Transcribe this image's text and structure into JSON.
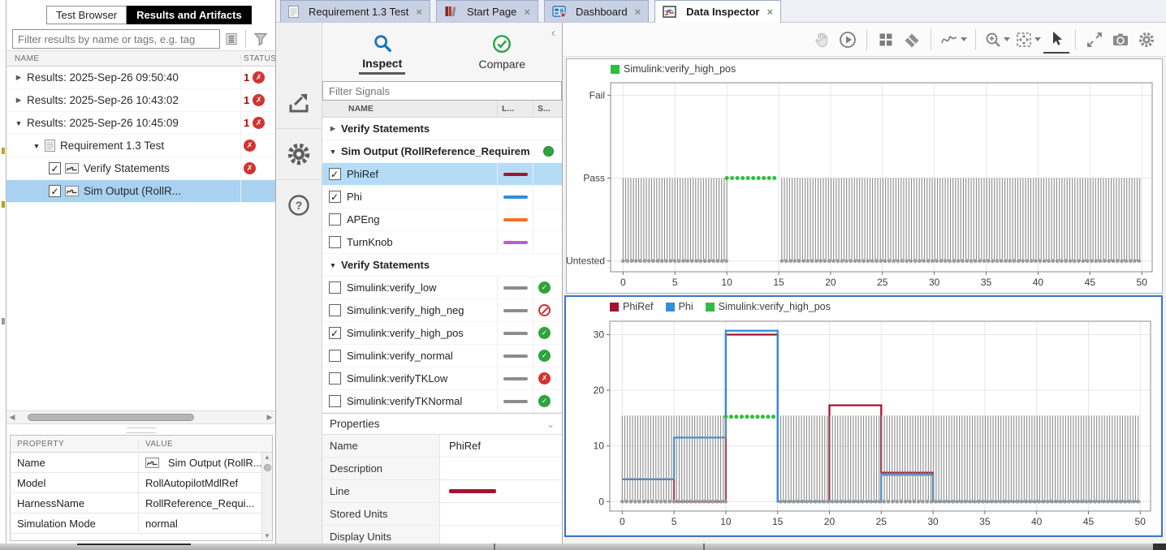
{
  "colors": {
    "selection_blue": "#A8D2F0",
    "subplot_selected_border": "#3D72CC",
    "status_pass": "#2EA33C",
    "status_fail": "#D23430",
    "status_excluded": "#C9302C",
    "untested_gray": "#8C8C8C"
  },
  "left_panel": {
    "tabs": [
      "Test Browser",
      "Results and Artifacts"
    ],
    "active_tab": "Results and Artifacts",
    "filter_placeholder": "Filter results by name or tags, e.g. tag",
    "filter_icons": [
      "list-view-icon",
      "filter-funnel-icon"
    ],
    "columns": [
      "NAME",
      "STATUS"
    ],
    "rows": [
      {
        "indent": 0,
        "arrow": "collapsed",
        "label": "Results: 2025-Sep-26 09:50:40",
        "status_count": "1",
        "status": "fail"
      },
      {
        "indent": 0,
        "arrow": "collapsed",
        "label": "Results: 2025-Sep-26 10:43:02",
        "status_count": "1",
        "status": "fail"
      },
      {
        "indent": 0,
        "arrow": "expanded",
        "label": "Results: 2025-Sep-26 10:45:09",
        "status_count": "1",
        "status": "fail"
      },
      {
        "indent": 1,
        "arrow": "expanded",
        "icon": "document",
        "label": "Requirement 1.3 Test",
        "status": "fail"
      },
      {
        "indent": 2,
        "checkbox": true,
        "icon": "signal",
        "label": "Verify Statements",
        "status": "fail"
      },
      {
        "indent": 2,
        "checkbox": true,
        "icon": "signal",
        "label": "Sim Output (RollR...",
        "selected": true
      }
    ],
    "properties": {
      "columns": [
        "PROPERTY",
        "VALUE"
      ],
      "rows": [
        {
          "label": "Name",
          "value": "Sim Output (RollR...",
          "icon": "signal"
        },
        {
          "label": "Model",
          "value": "RollAutopilotMdlRef"
        },
        {
          "label": "HarnessName",
          "value": "RollReference_Requi..."
        },
        {
          "label": "Simulation Mode",
          "value": "normal"
        }
      ]
    }
  },
  "document_tabs": [
    {
      "label": "Requirement 1.3 Test",
      "icon": "doc",
      "active": false
    },
    {
      "label": "Start Page",
      "icon": "start",
      "active": false
    },
    {
      "label": "Dashboard",
      "icon": "dashboard",
      "active": false
    },
    {
      "label": "Data Inspector",
      "icon": "inspector",
      "active": true
    }
  ],
  "sidebar_icons": [
    "export-icon",
    "gear-icon",
    "help-icon"
  ],
  "inspector_panel": {
    "tabs": [
      {
        "label": "Inspect",
        "icon": "magnifier-icon",
        "active": true
      },
      {
        "label": "Compare",
        "icon": "check-circle-icon",
        "active": false
      }
    ],
    "filter_placeholder": "Filter Signals",
    "columns": [
      "NAME",
      "L...",
      "S..."
    ],
    "rows": [
      {
        "type": "group",
        "arrow": "collapsed",
        "label": "Verify Statements"
      },
      {
        "type": "group",
        "arrow": "expanded",
        "label": "Sim Output (RollReference_Requirem",
        "badge": "green-dot"
      },
      {
        "type": "signal",
        "checked": true,
        "selected": true,
        "label": "PhiRef",
        "color": "#A2142F"
      },
      {
        "type": "signal",
        "checked": true,
        "label": "Phi",
        "color": "#2E8FE0"
      },
      {
        "type": "signal",
        "checked": false,
        "label": "APEng",
        "color": "#F47023"
      },
      {
        "type": "signal",
        "checked": false,
        "label": "TurnKnob",
        "color": "#B85DD8"
      },
      {
        "type": "group",
        "arrow": "expanded",
        "label": "Verify Statements"
      },
      {
        "type": "verify",
        "checked": false,
        "label": "Simulink:verify_low",
        "color": "#8C8C8C",
        "status": "pass"
      },
      {
        "type": "verify",
        "checked": false,
        "label": "Simulink:verify_high_neg",
        "color": "#8C8C8C",
        "status": "excluded"
      },
      {
        "type": "verify",
        "checked": true,
        "label": "Simulink:verify_high_pos",
        "color": "#8C8C8C",
        "status": "pass"
      },
      {
        "type": "verify",
        "checked": false,
        "label": "Simulink:verify_normal",
        "color": "#8C8C8C",
        "status": "pass"
      },
      {
        "type": "verify",
        "checked": false,
        "label": "Simulink:verifyTKLow",
        "color": "#8C8C8C",
        "status": "fail"
      },
      {
        "type": "verify",
        "checked": false,
        "label": "Simulink:verifyTKNormal",
        "color": "#8C8C8C",
        "status": "pass"
      }
    ],
    "properties": {
      "title": "Properties",
      "rows": [
        {
          "label": "Name",
          "value": "PhiRef"
        },
        {
          "label": "Description",
          "value": ""
        },
        {
          "label": "Line",
          "value": "",
          "swatch": "#A2142F"
        },
        {
          "label": "Stored Units",
          "value": ""
        },
        {
          "label": "Display Units",
          "value": ""
        }
      ]
    }
  },
  "toolbar": {
    "items": [
      {
        "icon": "pan-hand",
        "name": "pan",
        "disabled": true
      },
      {
        "icon": "replay",
        "name": "replay"
      },
      {
        "sep": true
      },
      {
        "icon": "layout-grid",
        "name": "subplot-layout"
      },
      {
        "icon": "eraser",
        "name": "clear-plots"
      },
      {
        "sep": true
      },
      {
        "icon": "signal-style",
        "name": "signal-style",
        "dropdown": true
      },
      {
        "sep": true
      },
      {
        "icon": "zoom-in",
        "name": "zoom-in",
        "dropdown": true
      },
      {
        "icon": "fit-view",
        "name": "fit-to-view",
        "dropdown": true
      },
      {
        "icon": "cursor",
        "name": "data-cursor",
        "active": true
      },
      {
        "sep": true
      },
      {
        "icon": "expand",
        "name": "maximize"
      },
      {
        "icon": "camera",
        "name": "snapshot"
      },
      {
        "icon": "gear",
        "name": "settings"
      }
    ]
  },
  "chart_data": [
    {
      "type": "line",
      "name": "verify-result-timeline",
      "legend": [
        {
          "label": "Simulink:verify_high_pos",
          "color": "#2FBE41"
        }
      ],
      "xlim": [
        -1.2,
        51
      ],
      "ylim": [
        -0.13,
        2.15
      ],
      "xticks": [
        0,
        5,
        10,
        15,
        20,
        25,
        30,
        35,
        40,
        45,
        50
      ],
      "yticks": [
        {
          "value": 2,
          "label": "Fail"
        },
        {
          "value": 1,
          "label": "Pass"
        },
        {
          "value": 0,
          "label": "Untested"
        }
      ],
      "grid": true,
      "comb": {
        "ranges": [
          [
            0,
            10
          ],
          [
            15.3,
            50
          ]
        ],
        "base": 0,
        "top": 1,
        "spacing": 0.25,
        "color": "#8C8C8C"
      },
      "series": [
        {
          "name": "Simulink:verify_high_pos",
          "color": "#2FBE41",
          "style": "dotted",
          "points": [
            [
              10,
              1
            ],
            [
              15,
              1
            ]
          ]
        }
      ],
      "baseline_dots": {
        "value": 0,
        "ranges": [
          [
            0,
            10
          ],
          [
            15.3,
            50
          ]
        ],
        "color": "#9A9A9A"
      }
    },
    {
      "type": "line",
      "name": "phi-signals",
      "legend": [
        {
          "label": "PhiRef",
          "color": "#A2142F"
        },
        {
          "label": "Phi",
          "color": "#2E8FE0"
        },
        {
          "label": "Simulink:verify_high_pos",
          "color": "#2FBE41"
        }
      ],
      "xlim": [
        -1.2,
        51
      ],
      "ylim": [
        -1.7,
        32.4
      ],
      "xticks": [
        0,
        5,
        10,
        15,
        20,
        25,
        30,
        35,
        40,
        45,
        50
      ],
      "yticks": [
        {
          "value": 30,
          "label": "30"
        },
        {
          "value": 20,
          "label": "20"
        },
        {
          "value": 10,
          "label": "10"
        },
        {
          "value": 0,
          "label": "0"
        }
      ],
      "grid": true,
      "comb": {
        "ranges": [
          [
            0,
            10
          ],
          [
            15.3,
            50
          ]
        ],
        "base": 0,
        "top": 15.45,
        "spacing": 0.25,
        "color": "#8C8C8C"
      },
      "series": [
        {
          "name": "PhiRef",
          "color": "#A2142F",
          "points": [
            [
              0,
              4
            ],
            [
              5,
              4
            ],
            [
              5,
              0
            ],
            [
              10,
              0
            ],
            [
              10,
              30
            ],
            [
              15,
              30
            ],
            [
              15,
              0
            ],
            [
              20,
              0
            ],
            [
              20,
              17.3
            ],
            [
              25,
              17.3
            ],
            [
              25,
              5.2
            ],
            [
              30,
              5.2
            ],
            [
              30,
              0
            ],
            [
              50,
              0
            ]
          ]
        },
        {
          "name": "Phi",
          "color": "#2E8FE0",
          "points": [
            [
              0,
              4
            ],
            [
              5,
              4
            ],
            [
              5,
              11.5
            ],
            [
              10,
              11.5
            ],
            [
              10,
              30.7
            ],
            [
              15,
              30.7
            ],
            [
              15,
              0
            ],
            [
              25,
              0
            ],
            [
              25,
              4.8
            ],
            [
              30,
              4.8
            ],
            [
              30,
              0
            ],
            [
              50,
              0
            ]
          ]
        },
        {
          "name": "Simulink:verify_high_pos",
          "color": "#2FBE41",
          "style": "dotted",
          "points": [
            [
              10,
              15.25
            ],
            [
              15,
              15.25
            ]
          ]
        }
      ],
      "baseline_dots": {
        "value": 0,
        "ranges": [
          [
            0,
            10
          ],
          [
            15.3,
            50
          ]
        ],
        "color": "#9A9A9A"
      }
    }
  ]
}
